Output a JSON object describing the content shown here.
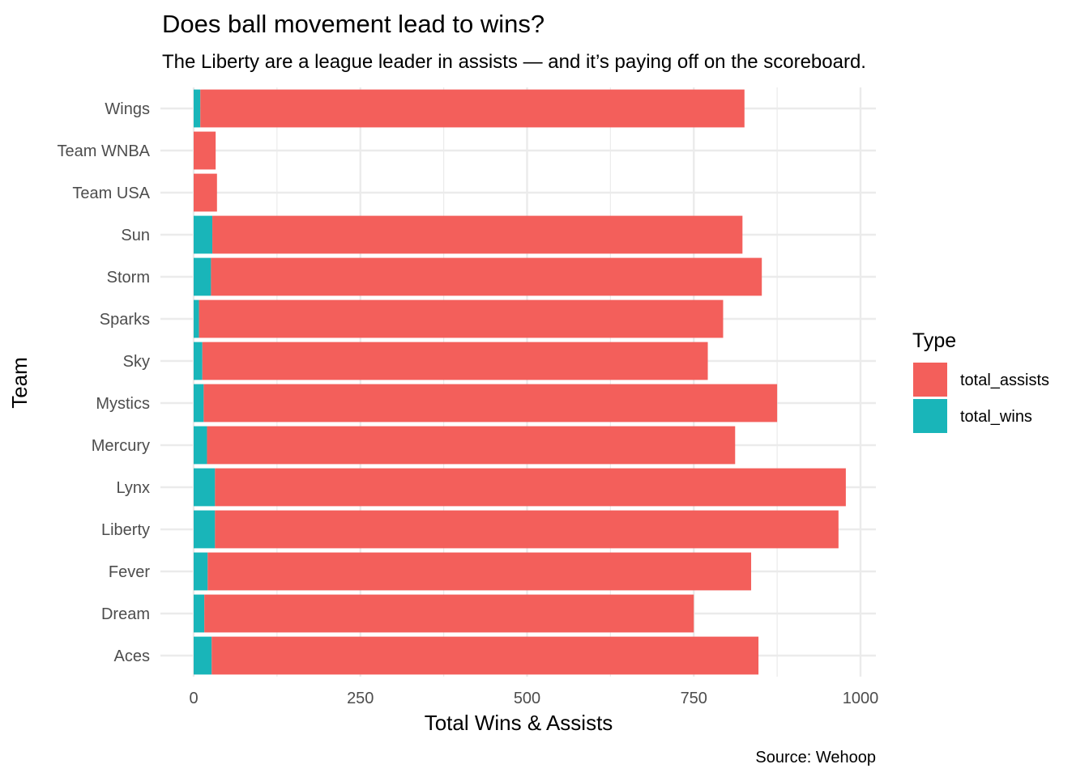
{
  "chart_data": {
    "type": "bar",
    "orientation": "horizontal",
    "stacked": true,
    "title": "Does ball movement lead to wins?",
    "subtitle": "The Liberty are a league leader in assists — and it’s paying off on the scoreboard.",
    "xlabel": "Total Wins & Assists",
    "ylabel": "Team",
    "caption": "Source: Wehoop",
    "xlim": [
      0,
      1000
    ],
    "xticks": [
      "0",
      "250",
      "500",
      "750",
      "1000"
    ],
    "grid": true,
    "legend_position": "right",
    "legend_title": "Type",
    "categories": [
      "Aces",
      "Dream",
      "Fever",
      "Liberty",
      "Lynx",
      "Mercury",
      "Mystics",
      "Sky",
      "Sparks",
      "Storm",
      "Sun",
      "Team USA",
      "Team WNBA",
      "Wings"
    ],
    "series": [
      {
        "name": "total_wins",
        "color": "#19B5B9",
        "values": [
          27,
          16,
          21,
          32,
          32,
          20,
          15,
          13,
          8,
          26,
          28,
          0,
          0,
          10
        ]
      },
      {
        "name": "total_assists",
        "color": "#F35F5B",
        "values": [
          820,
          734,
          815,
          935,
          946,
          792,
          860,
          758,
          786,
          826,
          795,
          35,
          33,
          816
        ]
      }
    ]
  }
}
